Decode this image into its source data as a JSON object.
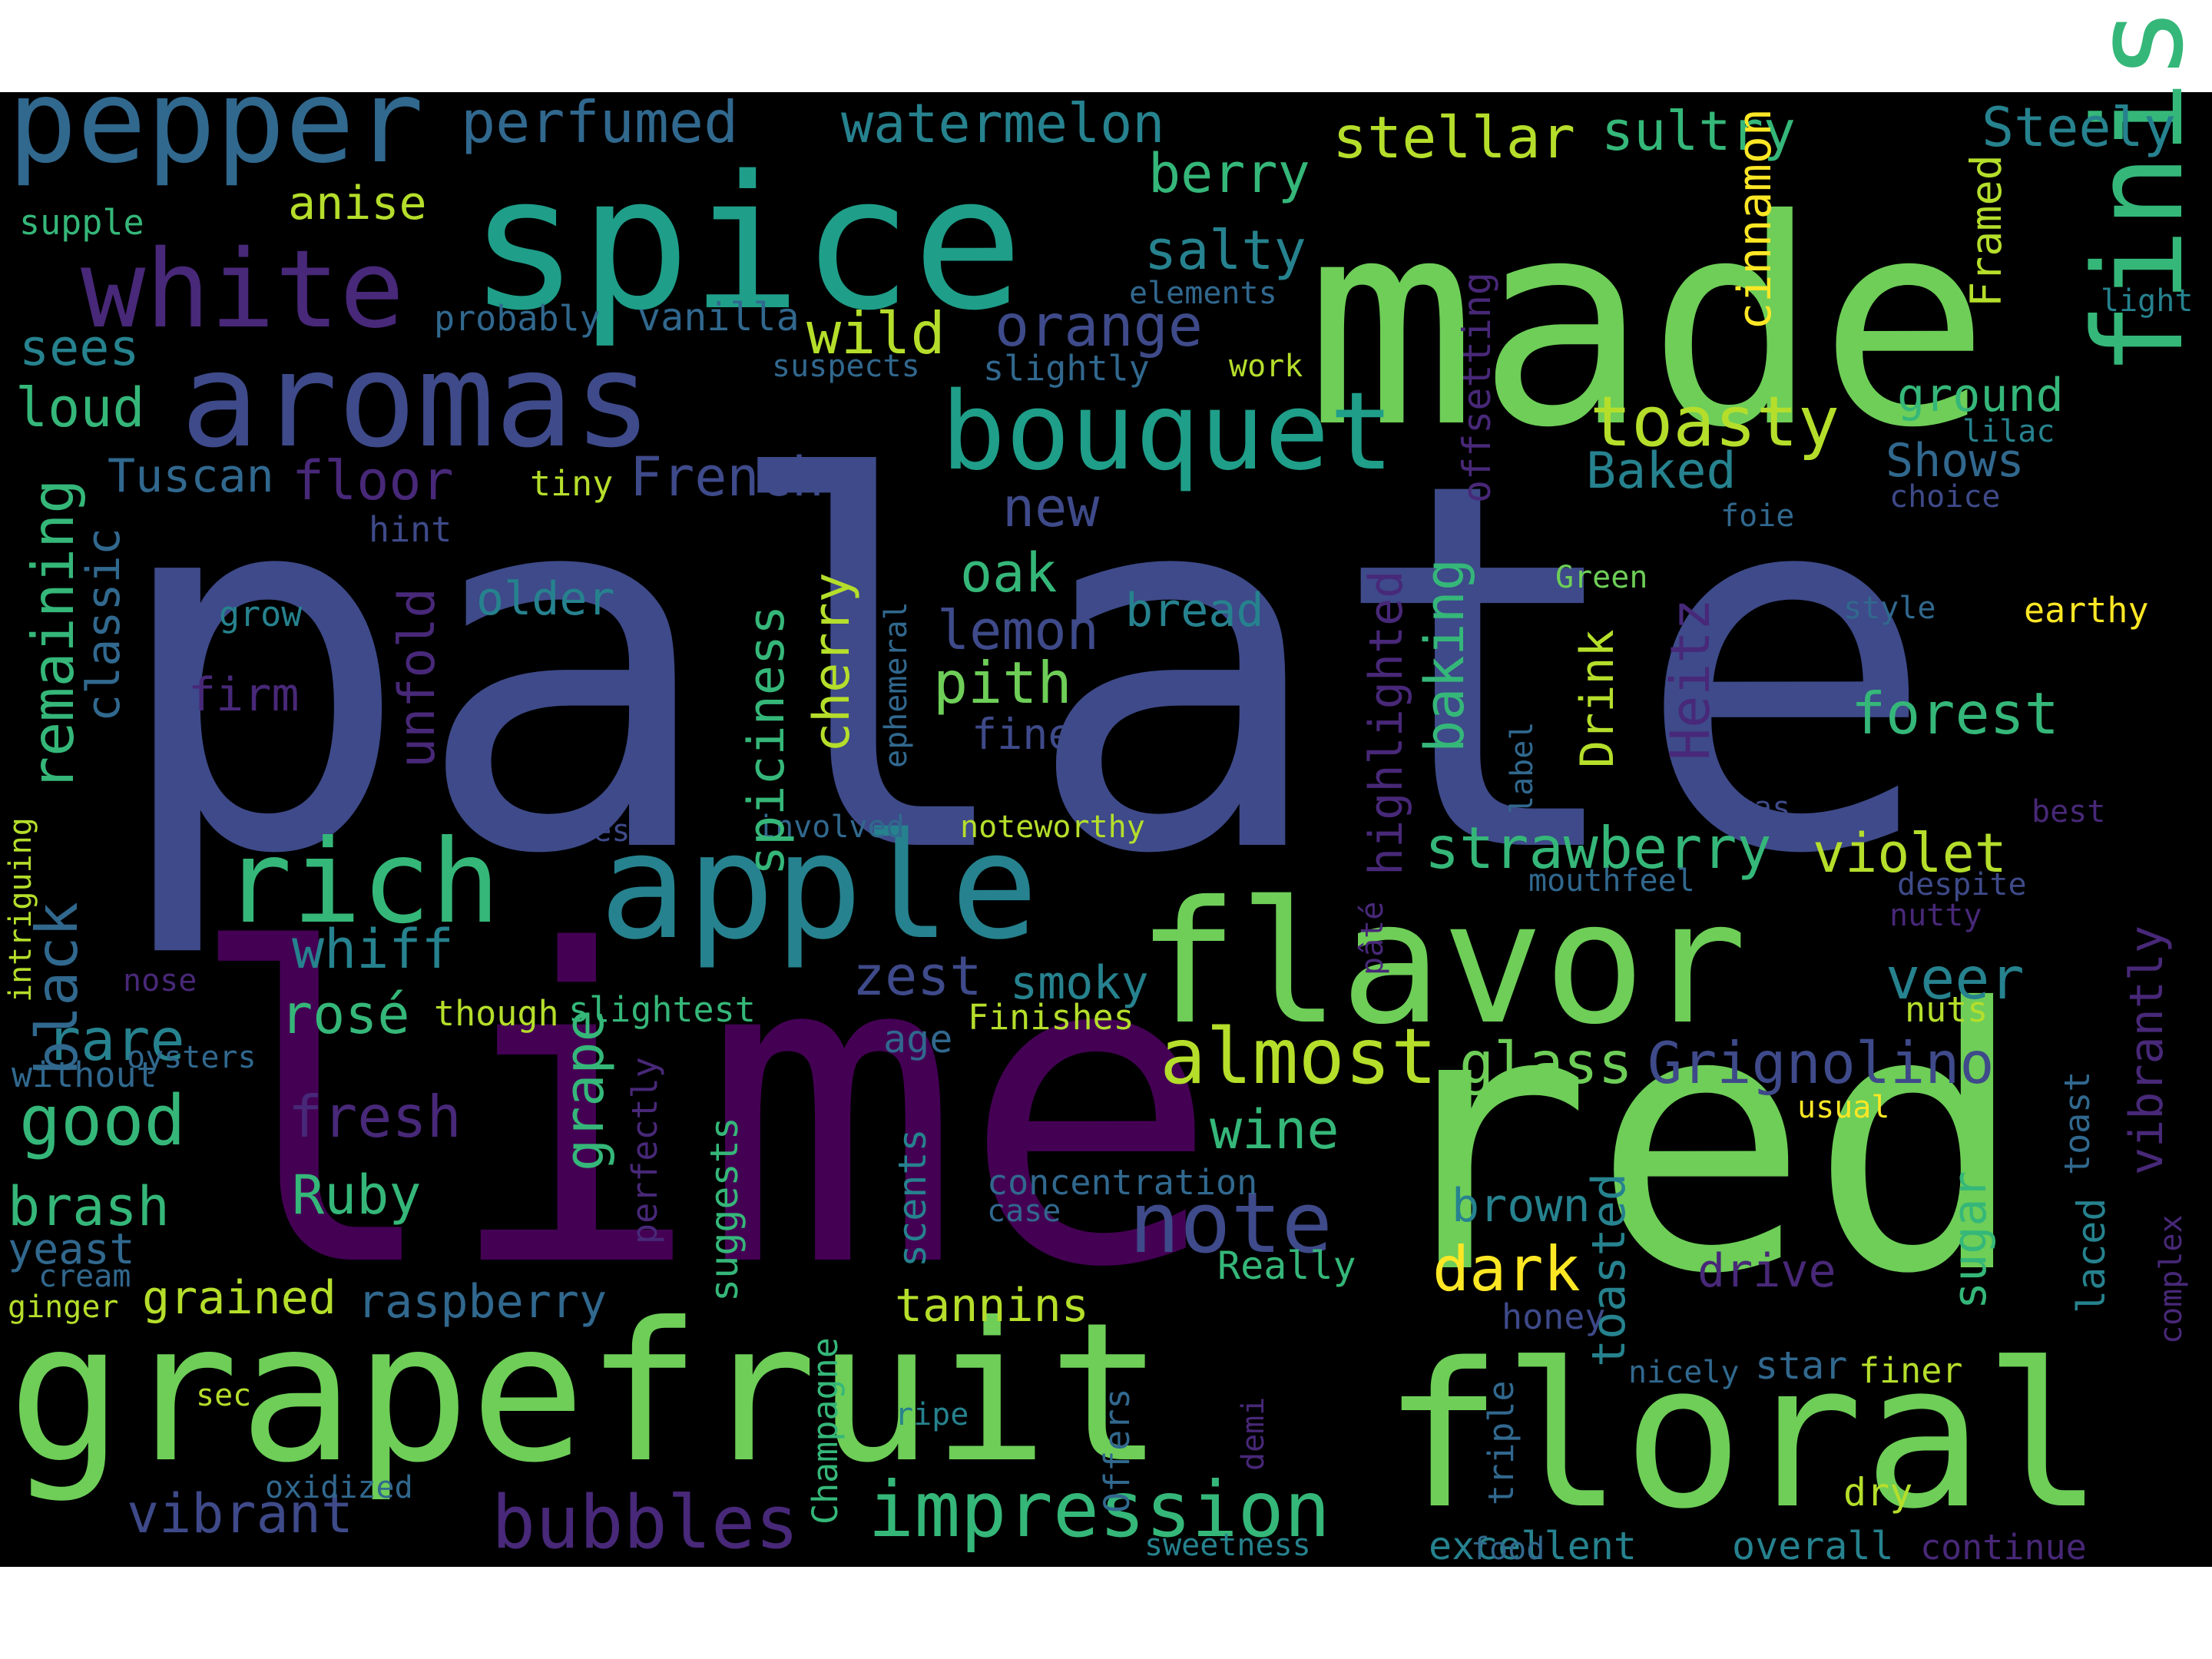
{
  "background": "#000000",
  "palette": [
    "#440154",
    "#482878",
    "#3e4a89",
    "#31688e",
    "#26828e",
    "#1f9e89",
    "#35b779",
    "#6ece58",
    "#b5de2b",
    "#fde725"
  ],
  "words": [
    {
      "text": "palate",
      "color": "#3e4a89"
    },
    {
      "text": "lime",
      "color": "#440154"
    },
    {
      "text": "red",
      "color": "#6ece58"
    },
    {
      "text": "made",
      "color": "#6ece58"
    },
    {
      "text": "spice",
      "color": "#1f9e89"
    },
    {
      "text": "grapefruit",
      "color": "#6ece58"
    },
    {
      "text": "floral",
      "color": "#6ece58"
    },
    {
      "text": "flavor",
      "color": "#6ece58"
    },
    {
      "text": "finish",
      "color": "#35b779"
    },
    {
      "text": "apple",
      "color": "#26828e"
    },
    {
      "text": "aromas",
      "color": "#3e4a89"
    },
    {
      "text": "pepper",
      "color": "#31688e"
    },
    {
      "text": "white",
      "color": "#482878"
    },
    {
      "text": "bouquet",
      "color": "#1f9e89"
    },
    {
      "text": "rich",
      "color": "#35b779"
    },
    {
      "text": "almost",
      "color": "#b5de2b"
    },
    {
      "text": "note",
      "color": "#3e4a89"
    },
    {
      "text": "impression",
      "color": "#35b779"
    },
    {
      "text": "bubbles",
      "color": "#482878"
    },
    {
      "text": "toasty",
      "color": "#b5de2b"
    },
    {
      "text": "perfumed",
      "color": "#31688e"
    },
    {
      "text": "watermelon",
      "color": "#26828e"
    },
    {
      "text": "stellar",
      "color": "#b5de2b"
    },
    {
      "text": "sultry",
      "color": "#35b779"
    },
    {
      "text": "Steely",
      "color": "#26828e"
    },
    {
      "text": "supple",
      "color": "#35b779"
    },
    {
      "text": "anise",
      "color": "#b5de2b"
    },
    {
      "text": "berry",
      "color": "#35b779"
    },
    {
      "text": "salty",
      "color": "#26828e"
    },
    {
      "text": "sees",
      "color": "#26828e"
    },
    {
      "text": "probably",
      "color": "#31688e"
    },
    {
      "text": "vanilla",
      "color": "#31688e"
    },
    {
      "text": "wild",
      "color": "#b5de2b"
    },
    {
      "text": "orange",
      "color": "#3e4a89"
    },
    {
      "text": "elements",
      "color": "#31688e"
    },
    {
      "text": "light",
      "color": "#26828e"
    },
    {
      "text": "loud",
      "color": "#35b779"
    },
    {
      "text": "suspects",
      "color": "#31688e"
    },
    {
      "text": "slightly",
      "color": "#31688e"
    },
    {
      "text": "work",
      "color": "#b5de2b"
    },
    {
      "text": "ground",
      "color": "#35b779"
    },
    {
      "text": "lilac",
      "color": "#26828e"
    },
    {
      "text": "Tuscan",
      "color": "#31688e"
    },
    {
      "text": "floor",
      "color": "#482878"
    },
    {
      "text": "French",
      "color": "#3e4a89"
    },
    {
      "text": "tiny",
      "color": "#b5de2b"
    },
    {
      "text": "Baked",
      "color": "#26828e"
    },
    {
      "text": "Shows",
      "color": "#31688e"
    },
    {
      "text": "choice",
      "color": "#3e4a89"
    },
    {
      "text": "new",
      "color": "#3e4a89"
    },
    {
      "text": "foie",
      "color": "#31688e"
    },
    {
      "text": "hint",
      "color": "#3e4a89"
    },
    {
      "text": "oak",
      "color": "#35b779"
    },
    {
      "text": "older",
      "color": "#26828e"
    },
    {
      "text": "Green",
      "color": "#6ece58"
    },
    {
      "text": "grow",
      "color": "#26828e"
    },
    {
      "text": "lemon",
      "color": "#3e4a89"
    },
    {
      "text": "bread",
      "color": "#26828e"
    },
    {
      "text": "style",
      "color": "#31688e"
    },
    {
      "text": "earthy",
      "color": "#fde725"
    },
    {
      "text": "firm",
      "color": "#482878"
    },
    {
      "text": "pith",
      "color": "#6ece58"
    },
    {
      "text": "forest",
      "color": "#35b779"
    },
    {
      "text": "fine",
      "color": "#3e4a89"
    },
    {
      "text": "strawberry",
      "color": "#35b779"
    },
    {
      "text": "violet",
      "color": "#b5de2b"
    },
    {
      "text": "cheeses",
      "color": "#3e4a89"
    },
    {
      "text": "involved",
      "color": "#31688e"
    },
    {
      "text": "noteworthy",
      "color": "#b5de2b"
    },
    {
      "text": "gras",
      "color": "#3e4a89"
    },
    {
      "text": "best",
      "color": "#482878"
    },
    {
      "text": "mouthfeel",
      "color": "#31688e"
    },
    {
      "text": "despite",
      "color": "#3e4a89"
    },
    {
      "text": "nutty",
      "color": "#482878"
    },
    {
      "text": "whiff",
      "color": "#26828e"
    },
    {
      "text": "zest",
      "color": "#3e4a89"
    },
    {
      "text": "smoky",
      "color": "#26828e"
    },
    {
      "text": "veer",
      "color": "#26828e"
    },
    {
      "text": "nose",
      "color": "#482878"
    },
    {
      "text": "rosé",
      "color": "#35b779"
    },
    {
      "text": "though",
      "color": "#b5de2b"
    },
    {
      "text": "slightest",
      "color": "#35b779"
    },
    {
      "text": "Finishes",
      "color": "#b5de2b"
    },
    {
      "text": "nuts",
      "color": "#b5de2b"
    },
    {
      "text": "rare",
      "color": "#26828e"
    },
    {
      "text": "age",
      "color": "#31688e"
    },
    {
      "text": "glass",
      "color": "#6ece58"
    },
    {
      "text": "Grignolino",
      "color": "#3e4a89"
    },
    {
      "text": "good",
      "color": "#35b779"
    },
    {
      "text": "oysters",
      "color": "#31688e"
    },
    {
      "text": "without",
      "color": "#31688e"
    },
    {
      "text": "fresh",
      "color": "#482878"
    },
    {
      "text": "wine",
      "color": "#35b779"
    },
    {
      "text": "usual",
      "color": "#fde725"
    },
    {
      "text": "Ruby",
      "color": "#35b779"
    },
    {
      "text": "concentration",
      "color": "#31688e"
    },
    {
      "text": "case",
      "color": "#31688e"
    },
    {
      "text": "brown",
      "color": "#26828e"
    },
    {
      "text": "brash",
      "color": "#35b779"
    },
    {
      "text": "yeast",
      "color": "#31688e"
    },
    {
      "text": "Really",
      "color": "#35b779"
    },
    {
      "text": "dark",
      "color": "#fde725"
    },
    {
      "text": "drive",
      "color": "#482878"
    },
    {
      "text": "cream",
      "color": "#31688e"
    },
    {
      "text": "grained",
      "color": "#b5de2b"
    },
    {
      "text": "raspberry",
      "color": "#31688e"
    },
    {
      "text": "tannins",
      "color": "#b5de2b"
    },
    {
      "text": "ginger",
      "color": "#b5de2b"
    },
    {
      "text": "honey",
      "color": "#3e4a89"
    },
    {
      "text": "nicely",
      "color": "#31688e"
    },
    {
      "text": "star",
      "color": "#31688e"
    },
    {
      "text": "finer",
      "color": "#b5de2b"
    },
    {
      "text": "sec",
      "color": "#b5de2b"
    },
    {
      "text": "ripe",
      "color": "#26828e"
    },
    {
      "text": "vibrant",
      "color": "#3e4a89"
    },
    {
      "text": "oxidized",
      "color": "#31688e"
    },
    {
      "text": "dry",
      "color": "#b5de2b"
    },
    {
      "text": "sweetness",
      "color": "#26828e"
    },
    {
      "text": "excellent",
      "color": "#26828e"
    },
    {
      "text": "food",
      "color": "#31688e"
    },
    {
      "text": "overall",
      "color": "#26828e"
    },
    {
      "text": "continue",
      "color": "#482878"
    },
    {
      "text": "cinnamon",
      "color": "#fde725"
    },
    {
      "text": "Framed",
      "color": "#b5de2b"
    },
    {
      "text": "offsetting",
      "color": "#482878"
    },
    {
      "text": "highlighted",
      "color": "#482878"
    },
    {
      "text": "baking",
      "color": "#35b779"
    },
    {
      "text": "Heitz",
      "color": "#482878"
    },
    {
      "text": "Drink",
      "color": "#b5de2b"
    },
    {
      "text": "label",
      "color": "#31688e"
    },
    {
      "text": "remaining",
      "color": "#35b779"
    },
    {
      "text": "classic",
      "color": "#31688e"
    },
    {
      "text": "unfold",
      "color": "#482878"
    },
    {
      "text": "spiciness",
      "color": "#35b779"
    },
    {
      "text": "cherry",
      "color": "#b5de2b"
    },
    {
      "text": "ephemeral",
      "color": "#31688e"
    },
    {
      "text": "black",
      "color": "#31688e"
    },
    {
      "text": "intriguing",
      "color": "#b5de2b"
    },
    {
      "text": "grape",
      "color": "#35b779"
    },
    {
      "text": "perfectly",
      "color": "#482878"
    },
    {
      "text": "suggests",
      "color": "#35b779"
    },
    {
      "text": "scents",
      "color": "#26828e"
    },
    {
      "text": "pâté",
      "color": "#482878"
    },
    {
      "text": "toasted",
      "color": "#26828e"
    },
    {
      "text": "sugar",
      "color": "#35b779"
    },
    {
      "text": "vibrantly",
      "color": "#482878"
    },
    {
      "text": "complex",
      "color": "#482878"
    },
    {
      "text": "laced",
      "color": "#26828e"
    },
    {
      "text": "toast",
      "color": "#31688e"
    },
    {
      "text": "Offers",
      "color": "#31688e"
    },
    {
      "text": "demi",
      "color": "#482878"
    },
    {
      "text": "triple",
      "color": "#31688e"
    },
    {
      "text": "Champagne",
      "color": "#35b779"
    }
  ]
}
